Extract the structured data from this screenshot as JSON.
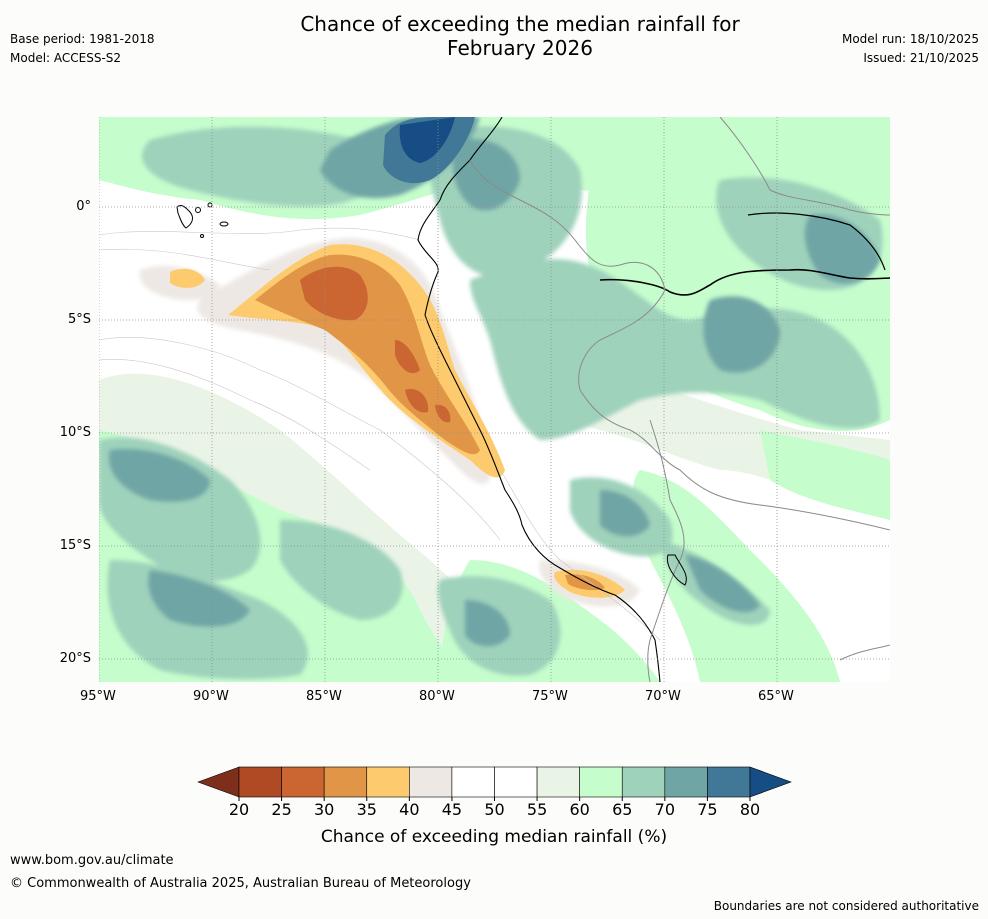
{
  "header": {
    "title_line1": "Chance of exceeding the median rainfall for",
    "title_line2": "February 2026",
    "base_period": "Base period: 1981-2018",
    "model": "Model: ACCESS-S2",
    "model_run": "Model run: 18/10/2025",
    "issued": "Issued: 21/10/2025"
  },
  "map": {
    "lat_labels": [
      "0°",
      "5°S",
      "10°S",
      "15°S",
      "20°S"
    ],
    "lon_labels": [
      "95°W",
      "90°W",
      "85°W",
      "80°W",
      "75°W",
      "70°W",
      "65°W"
    ],
    "lat_values": [
      0,
      -5,
      -10,
      -15,
      -20
    ],
    "lon_values": [
      -95,
      -90,
      -85,
      -80,
      -75,
      -70,
      -65
    ],
    "extent": {
      "lon_min": -95,
      "lon_max": -60,
      "lat_min": -21,
      "lat_max": 4
    }
  },
  "legend": {
    "title": "Chance of exceeding median rainfall (%)",
    "ticks": [
      "20",
      "25",
      "30",
      "35",
      "40",
      "45",
      "50",
      "55",
      "60",
      "65",
      "70",
      "75",
      "80"
    ],
    "colors": [
      "#7e2f1c",
      "#b04a25",
      "#cb6531",
      "#e19546",
      "#fdcb6e",
      "#ede8e4",
      "#ffffff",
      "#ffffff",
      "#eaf4e6",
      "#c6fdcc",
      "#9fd2bb",
      "#6fa5a5",
      "#427897",
      "#164d84"
    ]
  },
  "footer": {
    "url": "www.bom.gov.au/climate",
    "copyright": "© Commonwealth of Australia 2025, Australian Bureau of Meteorology",
    "disclaimer": "Boundaries are not considered authoritative"
  }
}
